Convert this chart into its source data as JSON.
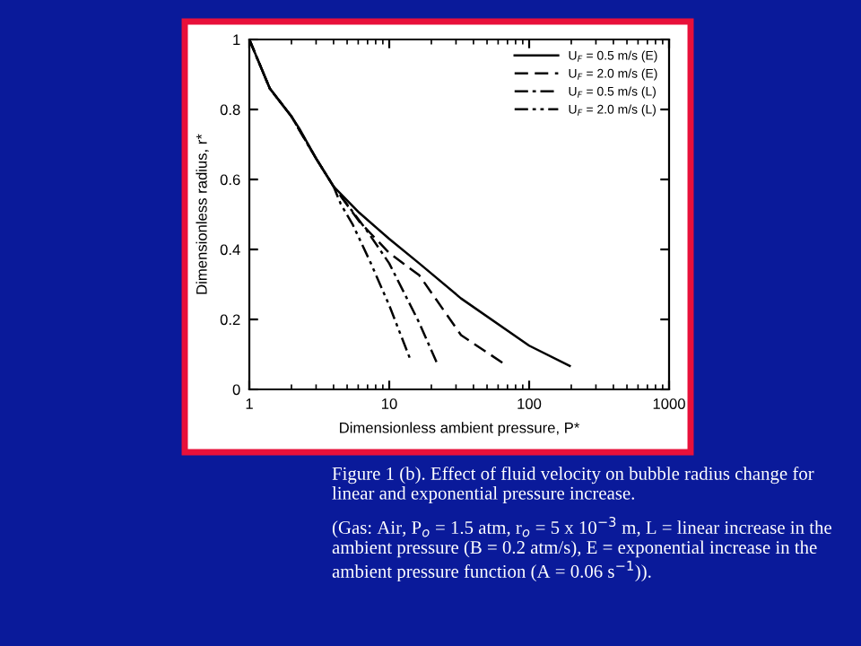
{
  "chart_data": {
    "type": "line",
    "xlabel": "Dimensionless ambient pressure, P*",
    "ylabel": "Dimensionless radius, r*",
    "log": "x",
    "xlim": [
      1,
      1000
    ],
    "xticks": [
      1,
      10,
      100,
      1000
    ],
    "ylim": [
      0,
      1
    ],
    "yticks": [
      0,
      0.2,
      0.4,
      0.6,
      0.8,
      1
    ],
    "grid": false,
    "legend": "top right",
    "marker": "none",
    "series": [
      {
        "name": "U$_{F}$ = 0.5 m/s (E)",
        "color": "#000000",
        "line_style": "solid",
        "x": [
          1,
          1.4,
          2,
          2.28,
          3,
          4,
          6.1,
          10,
          16.4,
          32.6,
          100,
          195
        ],
        "values": [
          1,
          0.86,
          0.78,
          0.745,
          0.66,
          0.58,
          0.505,
          0.43,
          0.36,
          0.26,
          0.125,
          0.067
        ]
      },
      {
        "name": "U$_{F}$ = 2.0 m/s (E)",
        "color": "#000000",
        "line_style": "dashed",
        "x": [
          1,
          1.4,
          2,
          3,
          4,
          6.1,
          10,
          16.4,
          32.6,
          68
        ],
        "values": [
          1,
          0.86,
          0.78,
          0.66,
          0.58,
          0.48,
          0.39,
          0.326,
          0.155,
          0.07
        ]
      },
      {
        "name": "U$_{F}$ = 0.5 m/s (L)",
        "color": "#000000",
        "line_style": "dashdot",
        "x": [
          1,
          1.4,
          2,
          3,
          4,
          6.75,
          10,
          16.4,
          22.4
        ],
        "values": [
          1,
          0.86,
          0.78,
          0.66,
          0.58,
          0.46,
          0.36,
          0.19,
          0.067
        ]
      },
      {
        "name": "U$_{F}$ = 2.0 m/s (L)",
        "color": "#000000",
        "line_style": "dashdotdot",
        "x": [
          1,
          1.4,
          2,
          3,
          4,
          4.5,
          5.5,
          7.4,
          10,
          14.1
        ],
        "values": [
          1,
          0.86,
          0.78,
          0.66,
          0.58,
          0.53,
          0.47,
          0.36,
          0.24,
          0.087
        ]
      }
    ],
    "annotations": [
      "Figure 1 (b). Effect of fluid velocity on bubble radius change for linear and exponential pressure increase.",
      "(Gas: Air, P$_{o}$ = 1.5 atm, r$_{o}$ = 5 x 10$^{−3}$ m, L = linear increase in the ambient pressure (B = 0.2 atm/s), E = exponential increase in the ambient pressure function (A = 0.06 s$^{−1}$))."
    ]
  }
}
